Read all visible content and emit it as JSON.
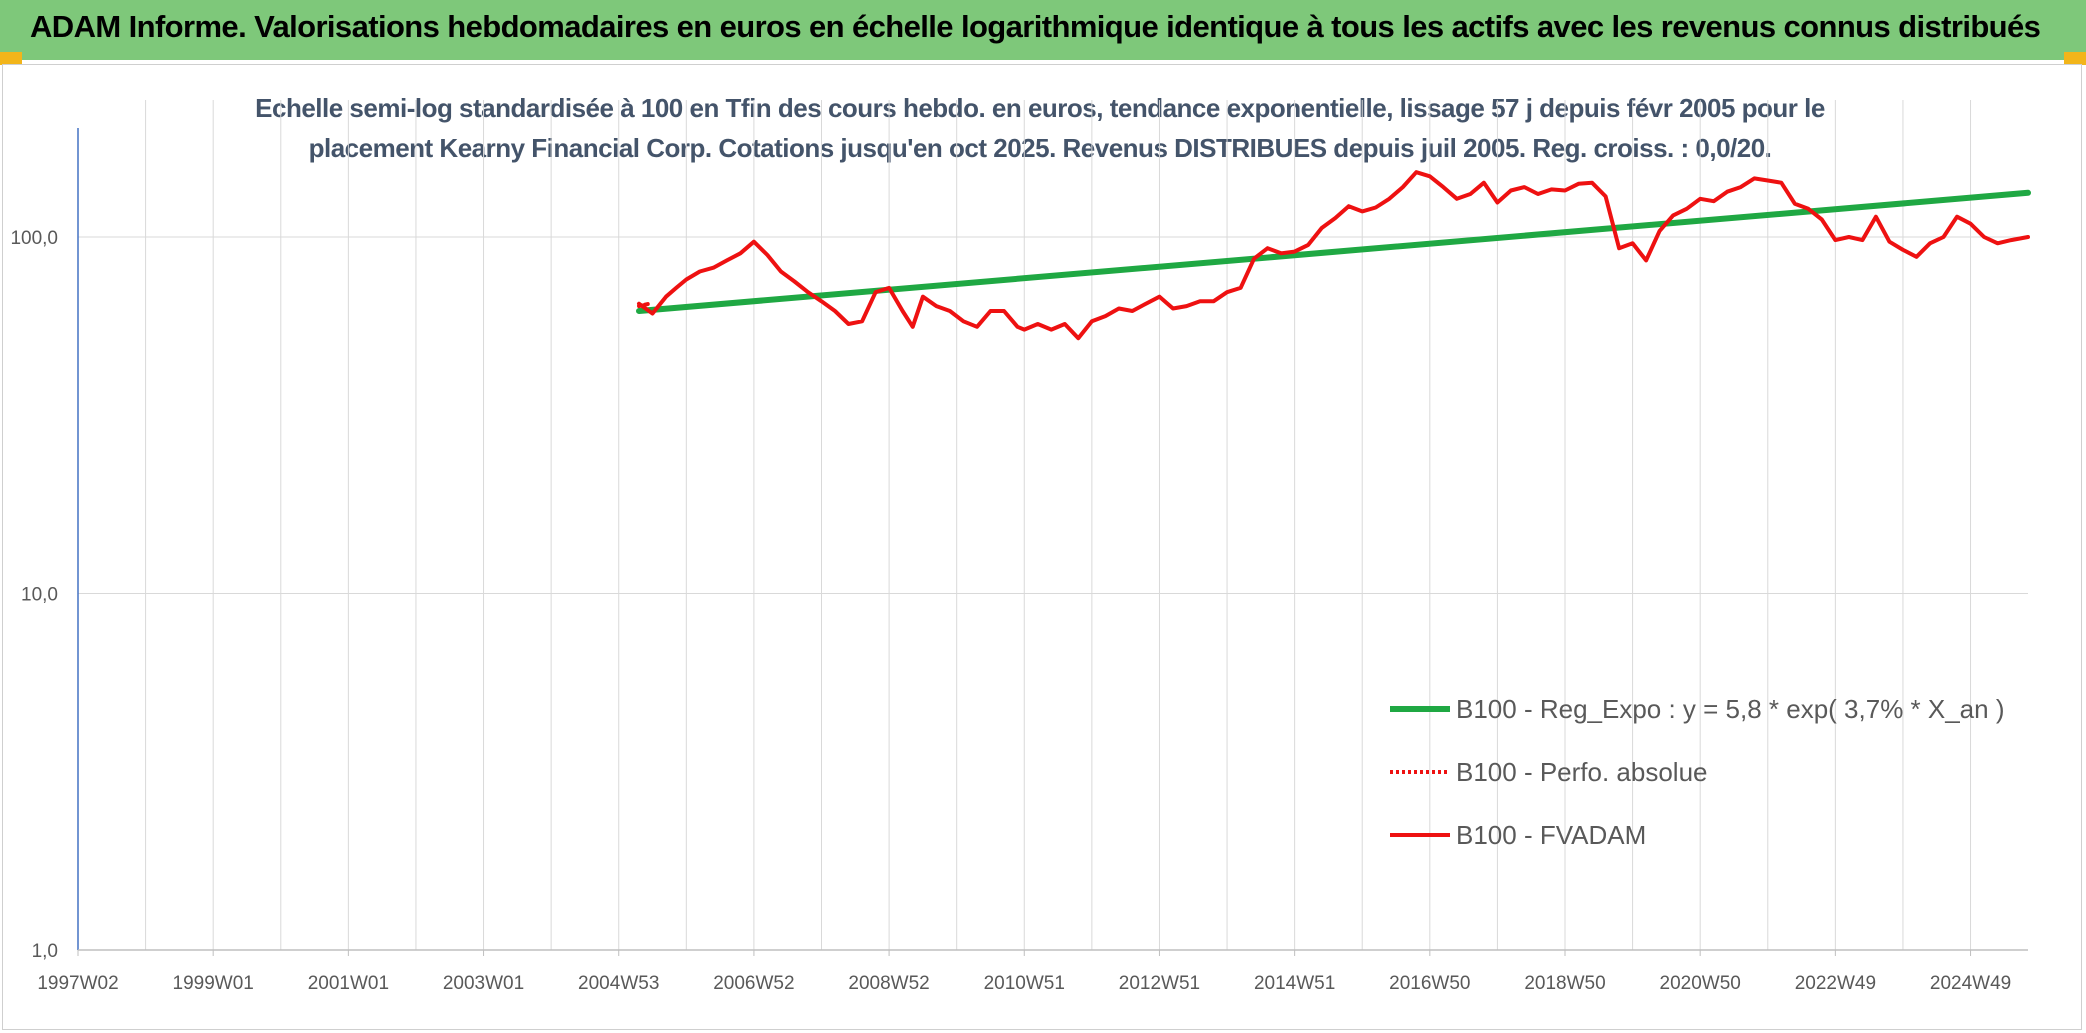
{
  "header": {
    "title": "ADAM Informe. Valorisations hebdomadaires en euros en échelle logarithmique identique à tous les actifs avec les revenus connus distribués"
  },
  "colors": {
    "banner": "#7ec87a",
    "corner": "#f2b51a",
    "regression": "#1fa843",
    "fvadam": "#ee1111",
    "grid": "#d9d9d9",
    "axis": "#4472c4"
  },
  "chart_data": {
    "type": "line",
    "title_line1": "Echelle semi-log standardisée à 100 en Tfin des cours hebdo. en euros, tendance exponentielle, lissage 57 j depuis févr 2005 pour le",
    "title_line2": "placement Kearny Financial Corp. Cotations jusqu'en oct 2025. Revenus DISTRIBUES depuis juil 2005. Reg. croiss. : 0,0/20.",
    "y_scale": "log",
    "ylim": [
      1,
      200
    ],
    "y_ticks": [
      {
        "value": 100,
        "label": "100,0"
      },
      {
        "value": 10,
        "label": "10,0"
      },
      {
        "value": 1,
        "label": "1,0"
      }
    ],
    "x_range": [
      1997.0,
      2025.85
    ],
    "x_ticks": [
      {
        "x": 1997.0,
        "label": "1997W02"
      },
      {
        "x": 1999.0,
        "label": "1999W01"
      },
      {
        "x": 2001.0,
        "label": "2001W01"
      },
      {
        "x": 2003.0,
        "label": "2003W01"
      },
      {
        "x": 2005.0,
        "label": "2004W53"
      },
      {
        "x": 2007.0,
        "label": "2006W52"
      },
      {
        "x": 2009.0,
        "label": "2008W52"
      },
      {
        "x": 2011.0,
        "label": "2010W51"
      },
      {
        "x": 2013.0,
        "label": "2012W51"
      },
      {
        "x": 2015.0,
        "label": "2014W51"
      },
      {
        "x": 2017.0,
        "label": "2016W50"
      },
      {
        "x": 2019.0,
        "label": "2018W50"
      },
      {
        "x": 2021.0,
        "label": "2020W50"
      },
      {
        "x": 2023.0,
        "label": "2022W49"
      },
      {
        "x": 2025.0,
        "label": "2024W49"
      }
    ],
    "x_minor_grid": [
      1998,
      2000,
      2002,
      2004,
      2006,
      2008,
      2010,
      2012,
      2014,
      2016,
      2018,
      2020,
      2022,
      2024
    ],
    "legend_position": "bottom-right",
    "series": [
      {
        "name": "B100 - Reg_Expo : y = 5,8 * exp( 3,7% *  X_an )",
        "style": "solid-thick",
        "color": "#1fa843",
        "x": [
          2005.3,
          2025.85
        ],
        "y": [
          62,
          133
        ]
      },
      {
        "name": "B100 - Perfo. absolue",
        "style": "dotted",
        "color": "#ee1111",
        "x": [
          2005.3,
          2005.45
        ],
        "y": [
          64,
          65
        ]
      },
      {
        "name": "B100 - FVADAM",
        "style": "solid",
        "color": "#ee1111",
        "x": [
          2005.3,
          2005.5,
          2005.7,
          2005.85,
          2006.0,
          2006.2,
          2006.4,
          2006.6,
          2006.8,
          2007.0,
          2007.2,
          2007.4,
          2007.6,
          2007.8,
          2008.0,
          2008.2,
          2008.4,
          2008.6,
          2008.8,
          2009.0,
          2009.2,
          2009.35,
          2009.5,
          2009.7,
          2009.9,
          2010.1,
          2010.3,
          2010.5,
          2010.7,
          2010.9,
          2011.0,
          2011.2,
          2011.4,
          2011.6,
          2011.8,
          2012.0,
          2012.2,
          2012.4,
          2012.6,
          2012.8,
          2013.0,
          2013.2,
          2013.4,
          2013.6,
          2013.8,
          2014.0,
          2014.2,
          2014.4,
          2014.6,
          2014.8,
          2015.0,
          2015.2,
          2015.4,
          2015.6,
          2015.8,
          2016.0,
          2016.2,
          2016.4,
          2016.6,
          2016.8,
          2017.0,
          2017.2,
          2017.4,
          2017.6,
          2017.8,
          2018.0,
          2018.2,
          2018.4,
          2018.6,
          2018.8,
          2019.0,
          2019.2,
          2019.4,
          2019.6,
          2019.8,
          2020.0,
          2020.2,
          2020.4,
          2020.6,
          2020.8,
          2021.0,
          2021.2,
          2021.4,
          2021.6,
          2021.8,
          2022.0,
          2022.2,
          2022.4,
          2022.6,
          2022.8,
          2023.0,
          2023.2,
          2023.4,
          2023.6,
          2023.8,
          2024.0,
          2024.2,
          2024.4,
          2024.6,
          2024.8,
          2025.0,
          2025.2,
          2025.4,
          2025.6,
          2025.85
        ],
        "y": [
          65,
          61,
          68,
          72,
          76,
          80,
          82,
          86,
          90,
          97,
          89,
          80,
          75,
          70,
          66,
          62,
          57,
          58,
          70,
          72,
          62,
          56,
          68,
          64,
          62,
          58,
          56,
          62,
          62,
          56,
          55,
          57,
          55,
          57,
          52,
          58,
          60,
          63,
          62,
          65,
          68,
          63,
          64,
          66,
          66,
          70,
          72,
          87,
          93,
          90,
          91,
          95,
          106,
          113,
          122,
          118,
          121,
          128,
          138,
          152,
          148,
          138,
          128,
          132,
          142,
          125,
          135,
          138,
          132,
          136,
          135,
          141,
          142,
          130,
          93,
          96,
          86,
          104,
          115,
          120,
          128,
          126,
          134,
          138,
          146,
          144,
          142,
          124,
          120,
          112,
          98,
          100,
          98,
          114,
          97,
          92,
          88,
          96,
          100,
          114,
          109,
          100,
          96,
          98,
          100
        ]
      }
    ]
  }
}
